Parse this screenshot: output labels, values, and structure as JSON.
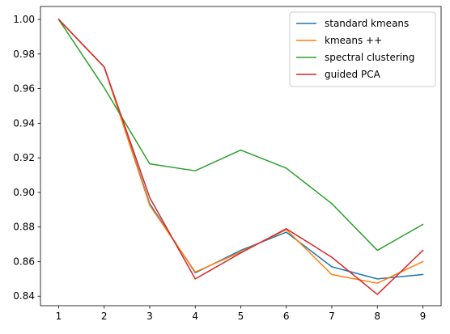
{
  "chart_data": {
    "type": "line",
    "x": [
      1,
      2,
      3,
      4,
      5,
      6,
      7,
      8,
      9
    ],
    "xlim": [
      0.6,
      9.4
    ],
    "ylim": [
      0.8345,
      1.0075
    ],
    "xticks": [
      1,
      2,
      3,
      4,
      5,
      6,
      7,
      8,
      9
    ],
    "xtick_labels": [
      "1",
      "2",
      "3",
      "4",
      "5",
      "6",
      "7",
      "8",
      "9"
    ],
    "yticks": [
      0.84,
      0.86,
      0.88,
      0.9,
      0.92,
      0.94,
      0.96,
      0.98,
      1.0
    ],
    "ytick_labels": [
      "0.84",
      "0.86",
      "0.88",
      "0.90",
      "0.92",
      "0.94",
      "0.96",
      "0.98",
      "1.00"
    ],
    "grid": false,
    "legend_position": "top-right",
    "series": [
      {
        "name": "standard kmeans",
        "color": "#1f77b4",
        "values": [
          1.0,
          0.9725,
          0.8935,
          0.8535,
          0.8665,
          0.877,
          0.857,
          0.85,
          0.8525
        ]
      },
      {
        "name": "kmeans ++",
        "color": "#ff7f0e",
        "values": [
          1.0,
          0.9725,
          0.8925,
          0.854,
          0.8655,
          0.8785,
          0.8525,
          0.8475,
          0.86
        ]
      },
      {
        "name": "spectral clustering",
        "color": "#2ca02c",
        "values": [
          1.0,
          0.9605,
          0.9165,
          0.9125,
          0.9245,
          0.914,
          0.8935,
          0.8665,
          0.8815
        ]
      },
      {
        "name": "guided PCA",
        "color": "#d62728",
        "values": [
          1.0,
          0.9725,
          0.897,
          0.85,
          0.865,
          0.879,
          0.8625,
          0.841,
          0.8665
        ]
      }
    ]
  }
}
